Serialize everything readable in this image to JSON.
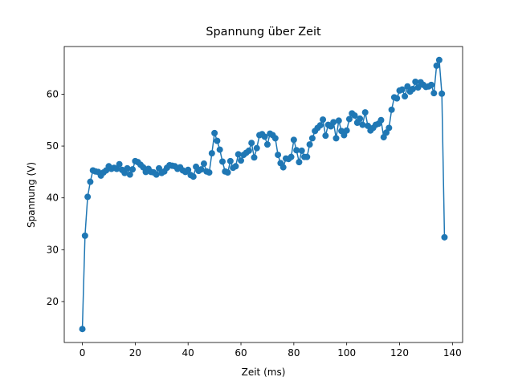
{
  "chart_data": {
    "type": "line",
    "title": "Spannung über Zeit",
    "xlabel": "Zeit (ms)",
    "ylabel": "Spannung (V)",
    "x": [
      0,
      1,
      2,
      3,
      4,
      5,
      6,
      7,
      8,
      9,
      10,
      11,
      12,
      13,
      14,
      15,
      16,
      17,
      18,
      19,
      20,
      21,
      22,
      23,
      24,
      25,
      26,
      27,
      28,
      29,
      30,
      31,
      32,
      33,
      34,
      35,
      36,
      37,
      38,
      39,
      40,
      41,
      42,
      43,
      44,
      45,
      46,
      47,
      48,
      49,
      50,
      51,
      52,
      53,
      54,
      55,
      56,
      57,
      58,
      59,
      60,
      61,
      62,
      63,
      64,
      65,
      66,
      67,
      68,
      69,
      70,
      71,
      72,
      73,
      74,
      75,
      76,
      77,
      78,
      79,
      80,
      81,
      82,
      83,
      84,
      85,
      86,
      87,
      88,
      89,
      90,
      91,
      92,
      93,
      94,
      95,
      96,
      97,
      98,
      99,
      100,
      101,
      102,
      103,
      104,
      105,
      106,
      107,
      108,
      109,
      110,
      111,
      112,
      113,
      114,
      115,
      116,
      117,
      118,
      119,
      120,
      121,
      122,
      123,
      124,
      125,
      126,
      127,
      128,
      129,
      130,
      131,
      132,
      133,
      134,
      135,
      136,
      137
    ],
    "series": [
      {
        "color": "#1f77b4",
        "values": [
          14.7,
          32.7,
          40.2,
          43.1,
          45.3,
          45.1,
          45.0,
          44.3,
          44.9,
          45.3,
          46.1,
          45.6,
          45.8,
          45.6,
          46.5,
          45.4,
          44.8,
          45.7,
          44.5,
          45.5,
          47.1,
          46.9,
          46.4,
          45.9,
          45.0,
          45.6,
          45.0,
          44.9,
          44.5,
          45.7,
          44.8,
          45.1,
          45.8,
          46.3,
          46.2,
          46.1,
          45.6,
          45.9,
          45.3,
          45.0,
          45.4,
          44.4,
          44.1,
          46.0,
          45.2,
          45.5,
          46.6,
          45.1,
          44.9,
          48.6,
          52.5,
          51.0,
          49.3,
          47.0,
          45.1,
          44.9,
          47.1,
          45.8,
          46.1,
          48.4,
          47.2,
          48.3,
          48.7,
          49.1,
          50.6,
          47.8,
          49.6,
          52.1,
          52.3,
          51.8,
          50.3,
          52.4,
          52.1,
          51.5,
          48.3,
          46.7,
          45.9,
          47.6,
          47.5,
          47.9,
          51.2,
          49.2,
          46.9,
          49.1,
          47.9,
          47.9,
          50.3,
          51.5,
          52.9,
          53.5,
          54.0,
          55.1,
          52.0,
          54.1,
          53.8,
          54.6,
          51.5,
          54.9,
          52.9,
          52.1,
          53.0,
          55.2,
          56.3,
          55.9,
          54.5,
          55.3,
          54.1,
          56.5,
          53.9,
          53.0,
          53.5,
          54.1,
          54.3,
          55.0,
          51.7,
          52.6,
          53.5,
          57.0,
          59.4,
          59.2,
          60.7,
          60.9,
          59.6,
          61.5,
          60.5,
          61.0,
          62.4,
          61.3,
          62.3,
          61.8,
          61.4,
          61.5,
          61.8,
          60.2,
          65.5,
          66.6,
          60.1,
          32.4
        ]
      }
    ],
    "xlim": [
      -6.85,
      143.85
    ],
    "xticks": [
      0,
      20,
      40,
      60,
      80,
      100,
      120,
      140
    ],
    "ylim": [
      12.1,
      69.2
    ],
    "yticks": [
      20,
      30,
      40,
      50,
      60
    ]
  }
}
